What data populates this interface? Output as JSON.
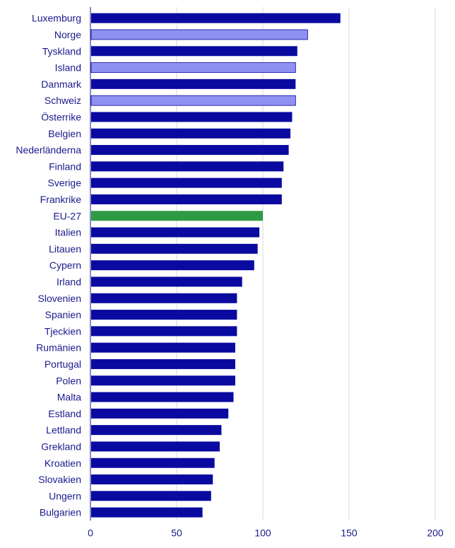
{
  "chart_data": {
    "type": "bar",
    "orientation": "horizontal",
    "title": "",
    "xlabel": "",
    "ylabel": "",
    "xlim": [
      0,
      200
    ],
    "xticks": [
      0,
      50,
      100,
      150,
      200
    ],
    "grid": true,
    "legend": "none",
    "categories": [
      "Luxemburg",
      "Norge",
      "Tyskland",
      "Island",
      "Danmark",
      "Schweiz",
      "Österrike",
      "Belgien",
      "Nederländerna",
      "Finland",
      "Sverige",
      "Frankrike",
      "EU-27",
      "Italien",
      "Litauen",
      "Cypern",
      "Irland",
      "Slovenien",
      "Spanien",
      "Tjeckien",
      "Rumänien",
      "Portugal",
      "Polen",
      "Malta",
      "Estland",
      "Lettland",
      "Grekland",
      "Kroatien",
      "Slovakien",
      "Ungern",
      "Bulgarien"
    ],
    "values": [
      145,
      126,
      120,
      119,
      119,
      119,
      117,
      116,
      115,
      112,
      111,
      111,
      100,
      98,
      97,
      95,
      88,
      85,
      85,
      85,
      84,
      84,
      84,
      83,
      80,
      76,
      75,
      72,
      71,
      70,
      65
    ],
    "groups": [
      "eu",
      "non-eu",
      "eu",
      "non-eu",
      "eu",
      "non-eu",
      "eu",
      "eu",
      "eu",
      "eu",
      "eu",
      "eu",
      "average",
      "eu",
      "eu",
      "eu",
      "eu",
      "eu",
      "eu",
      "eu",
      "eu",
      "eu",
      "eu",
      "eu",
      "eu",
      "eu",
      "eu",
      "eu",
      "eu",
      "eu",
      "eu"
    ],
    "colors": {
      "eu": "#0a0aa0",
      "non-eu": "#8f90f0",
      "average": "#2e9a44",
      "label": "#1a1a8c",
      "grid": "#d9d9d9",
      "axis": "#1a1a8c"
    }
  }
}
